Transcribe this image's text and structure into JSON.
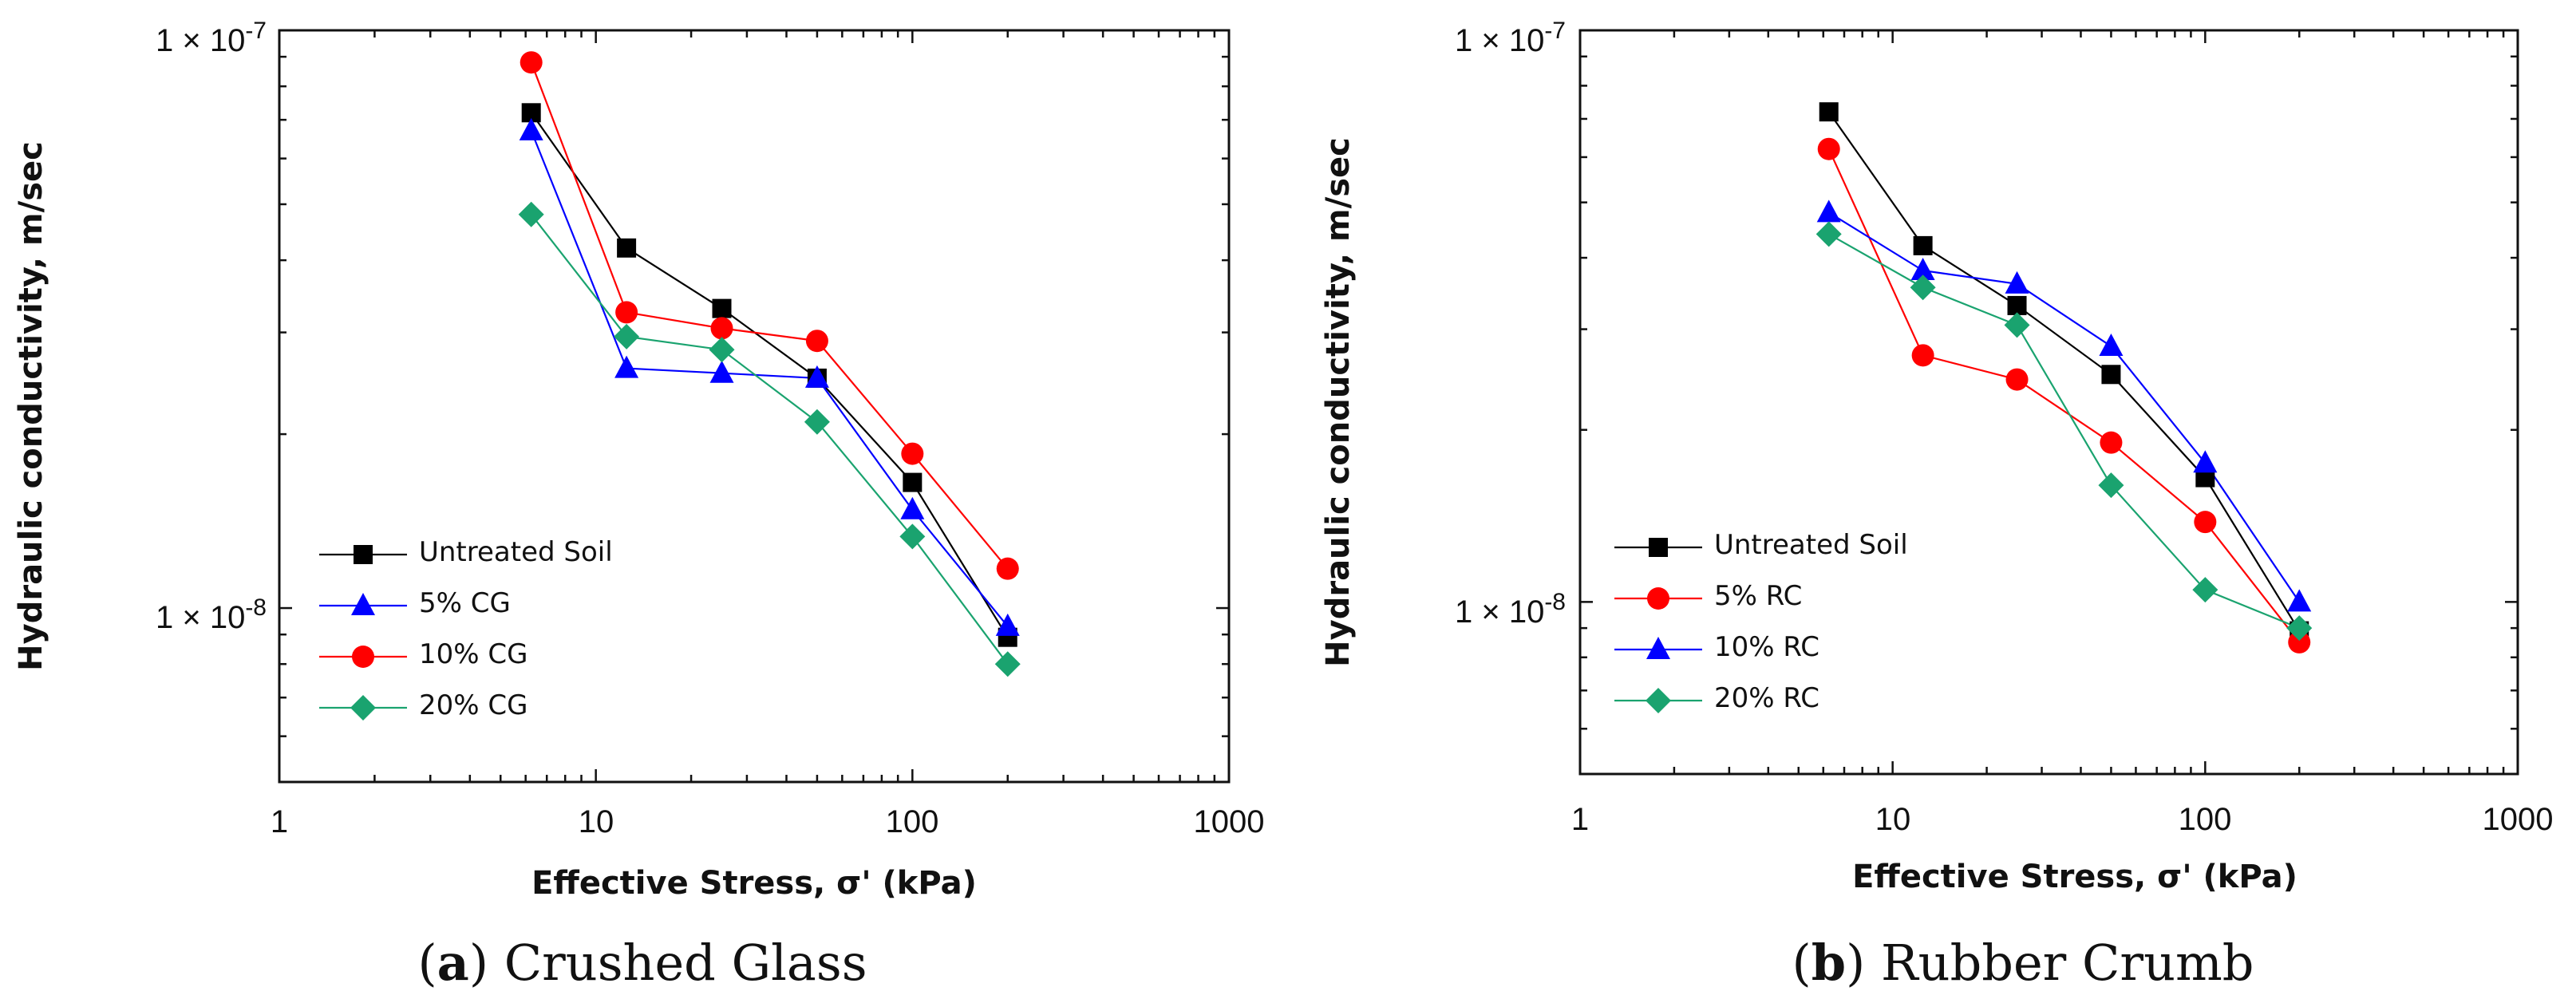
{
  "chart_data": [
    {
      "type": "line",
      "caption_letter": "a",
      "caption_text": "Crushed Glass",
      "xlabel": "Effective Stress, σ' (kPa)",
      "ylabel": "Hydraulic conductivity, m/sec",
      "xscale": "log",
      "yscale": "log",
      "xlim": [
        1,
        1000
      ],
      "ylim": [
        5e-09,
        1e-07
      ],
      "xticks": [
        "1",
        "10",
        "100",
        "1000"
      ],
      "y_major_ticks": [
        {
          "mantissa": "1 × 10",
          "exponent": "-7"
        },
        {
          "mantissa": "1 × 10",
          "exponent": "-8"
        }
      ],
      "legend_position": "bottom-left",
      "series": [
        {
          "name": "Untreated Soil",
          "color": "#000000",
          "marker": "square",
          "x": [
            6.25,
            12.5,
            25,
            50,
            100,
            200
          ],
          "y": [
            7.2e-08,
            4.2e-08,
            3.3e-08,
            2.5e-08,
            1.65e-08,
            8.9e-09
          ]
        },
        {
          "name": "5% CG",
          "color": "#0000ff",
          "marker": "triangle",
          "x": [
            6.25,
            12.5,
            25,
            50,
            100,
            200
          ],
          "y": [
            6.7e-08,
            2.6e-08,
            2.55e-08,
            2.5e-08,
            1.48e-08,
            9.3e-09
          ]
        },
        {
          "name": "10% CG",
          "color": "#ff0000",
          "marker": "circle",
          "x": [
            6.25,
            12.5,
            25,
            50,
            100,
            200
          ],
          "y": [
            8.8e-08,
            3.25e-08,
            3.05e-08,
            2.9e-08,
            1.85e-08,
            1.17e-08
          ]
        },
        {
          "name": "20% CG",
          "color": "#1aa36f",
          "marker": "diamond",
          "x": [
            6.25,
            12.5,
            25,
            50,
            100,
            200
          ],
          "y": [
            4.8e-08,
            2.95e-08,
            2.8e-08,
            2.1e-08,
            1.33e-08,
            8e-09
          ]
        }
      ]
    },
    {
      "type": "line",
      "caption_letter": "b",
      "caption_text": "Rubber Crumb",
      "xlabel": "Effective Stress, σ' (kPa)",
      "ylabel": "Hydraulic conductivity, m/sec",
      "xscale": "log",
      "yscale": "log",
      "xlim": [
        1,
        1000
      ],
      "ylim": [
        5e-09,
        1e-07
      ],
      "xticks": [
        "1",
        "10",
        "100",
        "1000"
      ],
      "y_major_ticks": [
        {
          "mantissa": "1 × 10",
          "exponent": "-7"
        },
        {
          "mantissa": "1 × 10",
          "exponent": "-8"
        }
      ],
      "legend_position": "bottom-left",
      "series": [
        {
          "name": "Untreated Soil",
          "color": "#000000",
          "marker": "square",
          "x": [
            6.25,
            12.5,
            25,
            50,
            100,
            200
          ],
          "y": [
            7.2e-08,
            4.2e-08,
            3.3e-08,
            2.5e-08,
            1.65e-08,
            8.9e-09
          ]
        },
        {
          "name": "5% RC",
          "color": "#ff0000",
          "marker": "circle",
          "x": [
            6.25,
            12.5,
            25,
            50,
            100,
            200
          ],
          "y": [
            6.2e-08,
            2.7e-08,
            2.45e-08,
            1.9e-08,
            1.38e-08,
            8.5e-09
          ]
        },
        {
          "name": "10% RC",
          "color": "#0000ff",
          "marker": "triangle",
          "x": [
            6.25,
            12.5,
            25,
            50,
            100,
            200
          ],
          "y": [
            4.8e-08,
            3.8e-08,
            3.6e-08,
            2.8e-08,
            1.75e-08,
            1e-08
          ]
        },
        {
          "name": "20% RC",
          "color": "#1aa36f",
          "marker": "diamond",
          "x": [
            6.25,
            12.5,
            25,
            50,
            100,
            200
          ],
          "y": [
            4.4e-08,
            3.55e-08,
            3.05e-08,
            1.6e-08,
            1.05e-08,
            9e-09
          ]
        }
      ]
    }
  ]
}
